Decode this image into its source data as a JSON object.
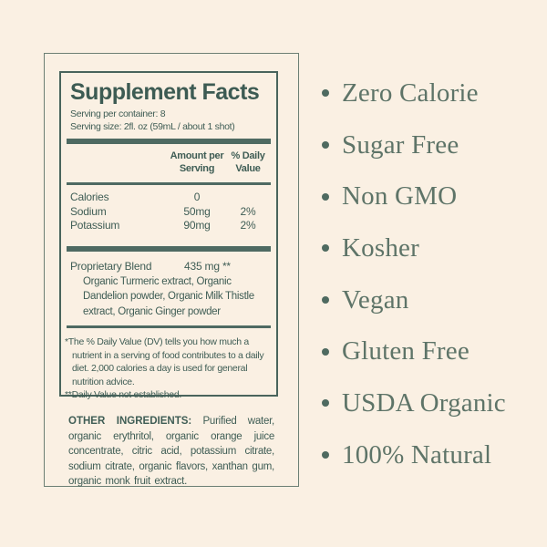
{
  "colors": {
    "background": "#faf0e3",
    "label_text": "#3f5d55",
    "bar": "#4e6a62",
    "inner_border": "#49645c",
    "outer_border": "#6c7f74",
    "list_text": "#5e7468"
  },
  "label": {
    "title": "Supplement Facts",
    "serving_per_container": "Serving per container: 8",
    "serving_size": "Serving size: 2fl. oz (59mL / about 1 shot)",
    "col_amount_header": "Amount per Serving",
    "col_dv_header": "% Daily Value",
    "rows": [
      {
        "name": "Calories",
        "amount": "0",
        "dv": ""
      },
      {
        "name": "Sodium",
        "amount": "50mg",
        "dv": "2%"
      },
      {
        "name": "Potassium",
        "amount": "90mg",
        "dv": "2%"
      }
    ],
    "blend": {
      "name": "Proprietary Blend",
      "amount": "435 mg **",
      "ingredients": "Organic Turmeric extract, Organic Dandelion powder, Organic Milk Thistle extract, Organic Ginger powder"
    },
    "footnotes": [
      "*The % Daily Value (DV) tells you how much a nutrient in a serving of food contributes to a daily diet. 2,000 calories a day is used for general nutrition advice.",
      "**Daily Value not established."
    ],
    "other_ingredients": {
      "heading": "OTHER INGREDIENTS:",
      "text": "Purified water, organic erythritol, organic orange juice concentrate, citric acid, potassium citrate, sodium citrate, organic flavors, xanthan gum, organic monk fruit extract."
    }
  },
  "features": {
    "items": [
      "Zero Calorie",
      "Sugar Free",
      "Non GMO",
      "Kosher",
      "Vegan",
      "Gluten Free",
      "USDA Organic",
      "100% Natural"
    ]
  }
}
